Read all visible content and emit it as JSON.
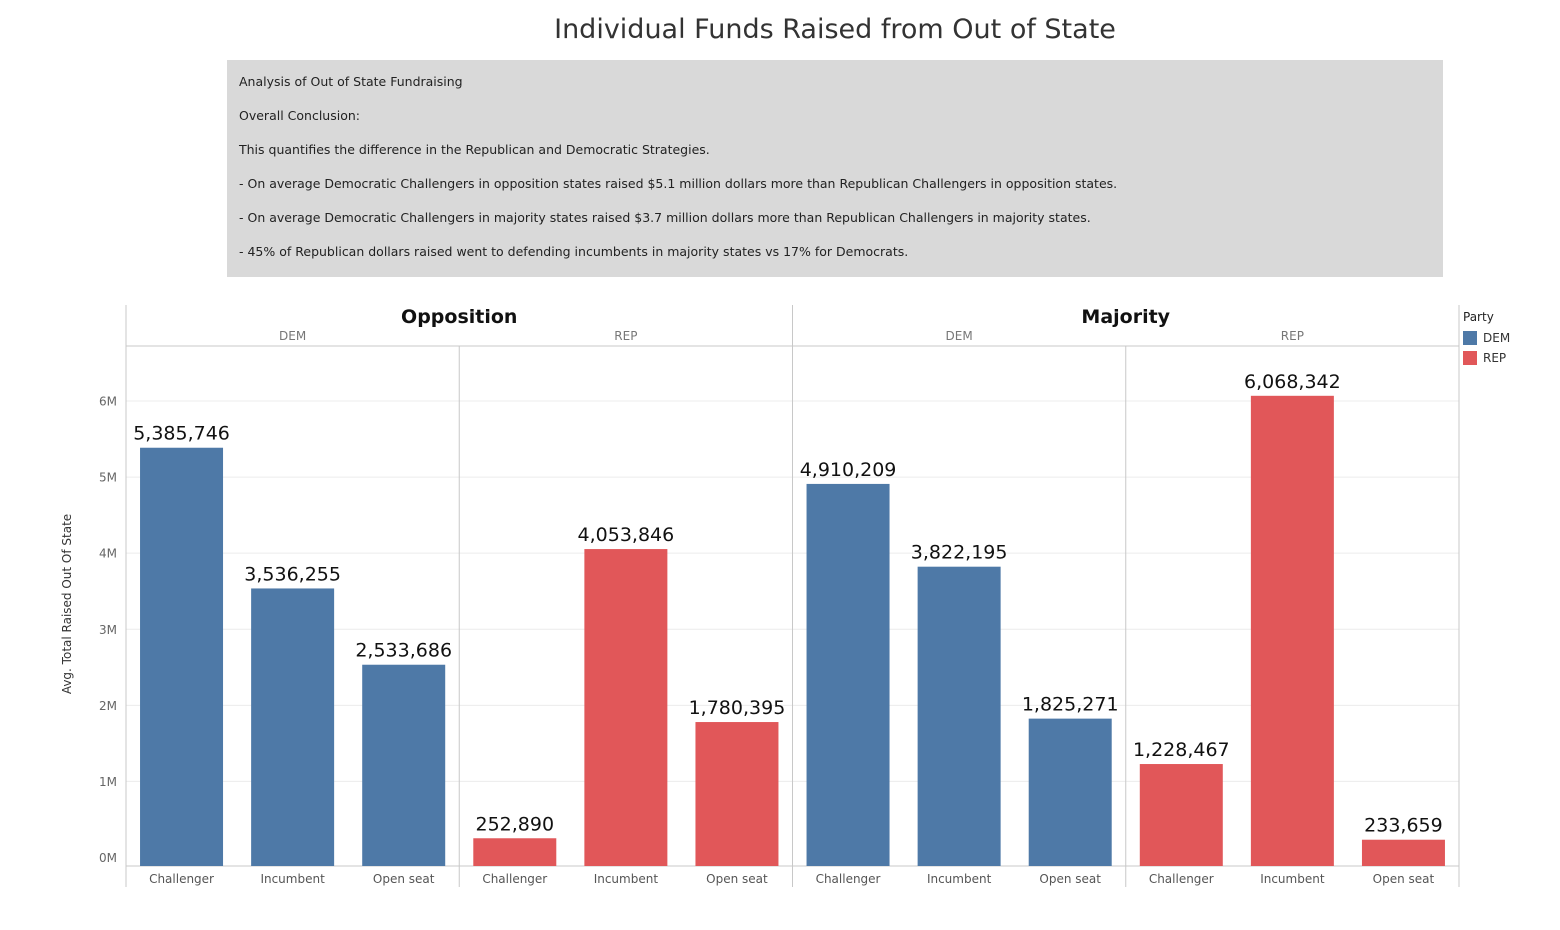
{
  "title": "Individual Funds Raised from Out of State",
  "notes": [
    "Analysis of Out of State Fundraising",
    "Overall Conclusion:",
    "This quantifies the difference in the Republican and Democratic Strategies.",
    " - On average Democratic Challengers in opposition states raised $5.1 million dollars more than Republican Challengers in opposition states.",
    "- On average Democratic Challengers in majority states raised $3.7 million dollars more than Republican Challengers in majority states.",
    "- 45% of Republican dollars raised went to defending incumbents in majority states vs 17% for Democrats."
  ],
  "legend": {
    "title": "Party",
    "items": [
      {
        "label": "DEM",
        "color": "#4e79a7"
      },
      {
        "label": "REP",
        "color": "#e15759"
      }
    ]
  },
  "chart_data": {
    "type": "bar",
    "ylabel": "Avg. Total Raised Out Of State",
    "ylim": [
      0,
      6800000
    ],
    "yticks": [
      0,
      1000000,
      2000000,
      3000000,
      4000000,
      5000000,
      6000000
    ],
    "ytick_labels": [
      "0M",
      "1M",
      "2M",
      "3M",
      "4M",
      "5M",
      "6M"
    ],
    "grid": true,
    "groups": [
      "Opposition",
      "Majority"
    ],
    "parties": [
      "DEM",
      "REP"
    ],
    "categories": [
      "Challenger",
      "Incumbent",
      "Open seat"
    ],
    "panels": [
      {
        "group": "Opposition",
        "party": "DEM",
        "color": "#4e79a7",
        "values": [
          5385746,
          3536255,
          2533686
        ],
        "labels": [
          "5,385,746",
          "3,536,255",
          "2,533,686"
        ]
      },
      {
        "group": "Opposition",
        "party": "REP",
        "color": "#e15759",
        "values": [
          252890,
          4053846,
          1780395
        ],
        "labels": [
          "252,890",
          "4,053,846",
          "1,780,395"
        ]
      },
      {
        "group": "Majority",
        "party": "DEM",
        "color": "#4e79a7",
        "values": [
          4910209,
          3822195,
          1825271
        ],
        "labels": [
          "4,910,209",
          "3,822,195",
          "1,825,271"
        ]
      },
      {
        "group": "Majority",
        "party": "REP",
        "color": "#e15759",
        "values": [
          1228467,
          6068342,
          233659
        ],
        "labels": [
          "1,228,467",
          "6,068,342",
          "233,659"
        ]
      }
    ]
  }
}
